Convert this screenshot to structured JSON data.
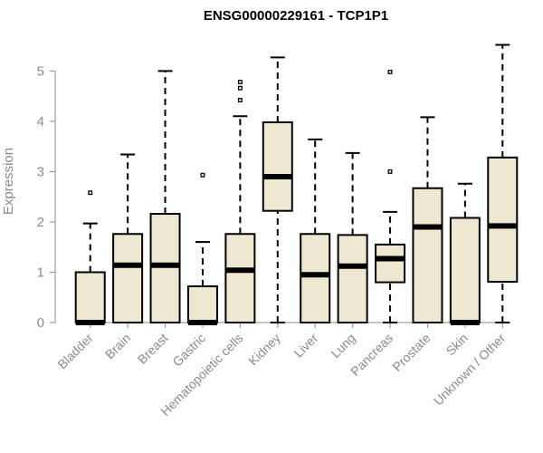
{
  "chart_data": {
    "type": "box",
    "title": "ENSG00000229161 - TCP1P1",
    "ylabel": "Expression",
    "xlabel": "",
    "ylim": [
      0,
      5.6
    ],
    "yticks": [
      0,
      1,
      2,
      3,
      4,
      5
    ],
    "grid": false,
    "categories": [
      "Bladder",
      "Brain",
      "Breast",
      "Gastric",
      "Hematopoietic cells",
      "Kidney",
      "Liver",
      "Lung",
      "Pancreas",
      "Prostate",
      "Skin",
      "Unknown / Other"
    ],
    "boxes": [
      {
        "category": "Bladder",
        "min": 0,
        "q1": 0,
        "median": 0,
        "q3": 1.0,
        "max": 1.97,
        "outliers": [
          2.58
        ]
      },
      {
        "category": "Brain",
        "min": 0,
        "q1": 0,
        "median": 1.14,
        "q3": 1.76,
        "max": 3.34,
        "outliers": []
      },
      {
        "category": "Breast",
        "min": 0,
        "q1": 0,
        "median": 1.14,
        "q3": 2.16,
        "max": 5.0,
        "outliers": []
      },
      {
        "category": "Gastric",
        "min": 0,
        "q1": 0,
        "median": 0,
        "q3": 0.72,
        "max": 1.6,
        "outliers": [
          2.93
        ]
      },
      {
        "category": "Hematopoietic cells",
        "min": 0,
        "q1": 0,
        "median": 1.04,
        "q3": 1.76,
        "max": 4.1,
        "outliers": [
          4.42,
          4.66,
          4.78
        ]
      },
      {
        "category": "Kidney",
        "min": 0,
        "q1": 2.22,
        "median": 2.9,
        "q3": 3.98,
        "max": 5.27,
        "outliers": []
      },
      {
        "category": "Liver",
        "min": 0,
        "q1": 0,
        "median": 0.95,
        "q3": 1.76,
        "max": 3.64,
        "outliers": []
      },
      {
        "category": "Lung",
        "min": 0,
        "q1": 0,
        "median": 1.12,
        "q3": 1.74,
        "max": 3.37,
        "outliers": []
      },
      {
        "category": "Pancreas",
        "min": 0,
        "q1": 0.8,
        "median": 1.27,
        "q3": 1.55,
        "max": 2.2,
        "outliers": [
          3.0,
          4.98
        ]
      },
      {
        "category": "Prostate",
        "min": 0,
        "q1": 0,
        "median": 1.9,
        "q3": 2.67,
        "max": 4.08,
        "outliers": []
      },
      {
        "category": "Skin",
        "min": 0,
        "q1": 0,
        "median": 0,
        "q3": 2.08,
        "max": 2.76,
        "outliers": []
      },
      {
        "category": "Unknown / Other",
        "min": 0,
        "q1": 0.81,
        "median": 1.92,
        "q3": 3.28,
        "max": 5.52,
        "outliers": []
      }
    ],
    "colors": {
      "box_fill": "#efe8d0",
      "stroke": "#000000",
      "axis": "#8a8a8a"
    }
  }
}
